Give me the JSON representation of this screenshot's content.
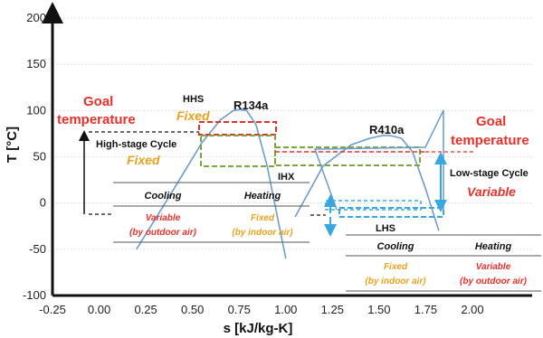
{
  "chart_data": {
    "type": "line",
    "xlabel": "s [kJ/kg-K]",
    "ylabel": "T [°C]",
    "xlim": [
      -0.25,
      2.0
    ],
    "ylim": [
      -100,
      200
    ],
    "xticks": [
      "-0.25",
      "0.00",
      "0.25",
      "0.50",
      "0.75",
      "1.00",
      "1.25",
      "1.50",
      "1.75",
      "2.00"
    ],
    "yticks": [
      "-100",
      "-50",
      "0",
      "50",
      "100",
      "150",
      "200"
    ],
    "series": [
      {
        "name": "R134a",
        "color": "#6a9ccf",
        "x": [
          0.2,
          0.4,
          0.55,
          0.65,
          0.72,
          0.75,
          0.79,
          0.84,
          0.9,
          1.0
        ],
        "y": [
          -50,
          15,
          65,
          90,
          100,
          101,
          100,
          85,
          40,
          -60
        ]
      },
      {
        "name": "R410a",
        "color": "#6a9ccf",
        "x": [
          1.05,
          1.2,
          1.35,
          1.45,
          1.52,
          1.56,
          1.62,
          1.68,
          1.75,
          1.82
        ],
        "y": [
          -15,
          40,
          63,
          70,
          73,
          73,
          70,
          55,
          15,
          -30
        ]
      }
    ],
    "annotations": {
      "curve_labels": [
        "R134a",
        "R410a"
      ],
      "hhs": "HHS",
      "hhs_fixed": "Fixed",
      "high_stage_cycle": "High-stage Cycle",
      "high_fixed": "Fixed",
      "ihx": "IHX",
      "lhs": "LHS",
      "goal_left": [
        "Goal",
        "temperature"
      ],
      "goal_right": [
        "Goal",
        "temperature"
      ],
      "low_stage_cycle": "Low-stage Cycle",
      "low_variable": "Variable"
    },
    "tables": [
      {
        "headers": [
          "Cooling",
          "Heating"
        ],
        "rows": [
          [
            "Variable",
            "Fixed"
          ],
          [
            "(by outdoor air)",
            "(by indoor air)"
          ]
        ]
      },
      {
        "headers": [
          "Cooling",
          "Heating"
        ],
        "rows": [
          [
            "Fixed",
            "Variable"
          ],
          [
            "(by indoor air)",
            "(by outdoor air)"
          ]
        ]
      }
    ],
    "grid": true,
    "legend": "none"
  }
}
